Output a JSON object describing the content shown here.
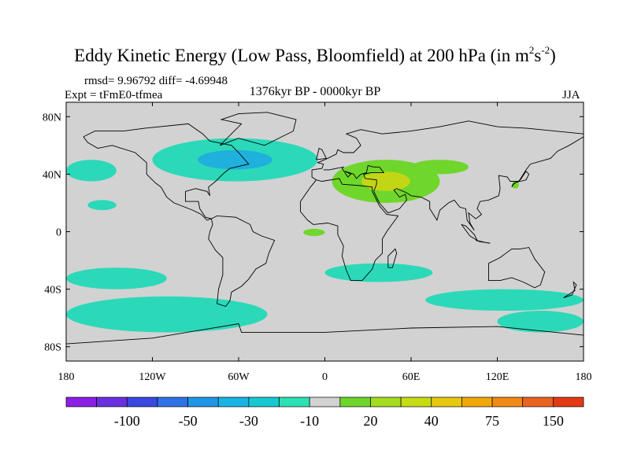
{
  "header": {
    "title_main": "Eddy Kinetic Energy (Low Pass, Bloomfield) at 200 hPa (in m",
    "title_exp1": "2",
    "title_mid": "s",
    "title_exp2": "-2",
    "title_end": ")",
    "stats": "rmsd= 9.96792 diff= -4.69948",
    "experiment": "Expt = tFmE0-tfmea",
    "period": "1376kyr BP - 0000kyr BP",
    "season": "JJA"
  },
  "axes": {
    "lat_ticks": [
      "80N",
      "40N",
      "0",
      "40S",
      "80S"
    ],
    "lon_ticks": [
      "180",
      "120W",
      "60W",
      "0",
      "60E",
      "120E",
      "180"
    ]
  },
  "colorbar": {
    "colors": [
      "#8b1fe6",
      "#6a2fe0",
      "#3a48e0",
      "#2f72e6",
      "#1f96e6",
      "#18b4e3",
      "#16c8d2",
      "#2de0b6",
      "#d2d2d2",
      "#6ed62a",
      "#a4dc1f",
      "#c8dc14",
      "#e6c80f",
      "#f0a80a",
      "#f08a14",
      "#e96420",
      "#e23a14"
    ],
    "labels": [
      "-100",
      "-50",
      "-30",
      "-10",
      "20",
      "40",
      "75",
      "150"
    ]
  },
  "chart_data": {
    "type": "heatmap",
    "title": "Eddy Kinetic Energy (Low Pass, Bloomfield) at 200 hPa (in m2s-2)",
    "subtitle": "1376kyr BP - 0000kyr BP",
    "xlim": [
      -180,
      180
    ],
    "ylim": [
      -90,
      90
    ],
    "background_value": "-10 to 20",
    "anomaly_regions": [
      {
        "region": "North Atlantic / Greenland",
        "lon": [
          -120,
          -5
        ],
        "lat": [
          35,
          65
        ],
        "class": "-30 to -10",
        "core": "-50 to -30"
      },
      {
        "region": "North Pacific",
        "lon": [
          -180,
          -145
        ],
        "lat": [
          35,
          50
        ],
        "class": "-30 to -10"
      },
      {
        "region": "Central Pacific north",
        "lon": [
          -165,
          -145
        ],
        "lat": [
          15,
          22
        ],
        "class": "-30 to -10"
      },
      {
        "region": "Mediterranean / Middle East",
        "lon": [
          5,
          80
        ],
        "lat": [
          20,
          50
        ],
        "class": "20 to 40",
        "core": "40 to 75"
      },
      {
        "region": "Central Asia",
        "lon": [
          60,
          100
        ],
        "lat": [
          40,
          50
        ],
        "class": "20 to 40"
      },
      {
        "region": "Equatorial Africa",
        "lon": [
          -15,
          0
        ],
        "lat": [
          -3,
          2
        ],
        "class": "20 to 40"
      },
      {
        "region": "East Asia",
        "lon": [
          130,
          135
        ],
        "lat": [
          30,
          35
        ],
        "class": "20 to 40"
      },
      {
        "region": "South Pacific",
        "lon": [
          -180,
          -110
        ],
        "lat": [
          -40,
          -25
        ],
        "class": "-30 to -10"
      },
      {
        "region": "South Atlantic / Indian Ocean",
        "lon": [
          0,
          75
        ],
        "lat": [
          -35,
          -22
        ],
        "class": "-30 to -10"
      },
      {
        "region": "Southern Ocean Atlantic sector",
        "lon": [
          -180,
          -40
        ],
        "lat": [
          -70,
          -45
        ],
        "class": "-30 to -10"
      },
      {
        "region": "Southern Indian / Pacific",
        "lon": [
          70,
          180
        ],
        "lat": [
          -55,
          -40
        ],
        "class": "-30 to -10"
      },
      {
        "region": "Southern Ocean far south",
        "lon": [
          120,
          180
        ],
        "lat": [
          -70,
          -55
        ],
        "class": "-30 to -10"
      }
    ],
    "colorbar_levels": [
      -100,
      -50,
      -30,
      -10,
      20,
      40,
      75,
      150
    ]
  }
}
